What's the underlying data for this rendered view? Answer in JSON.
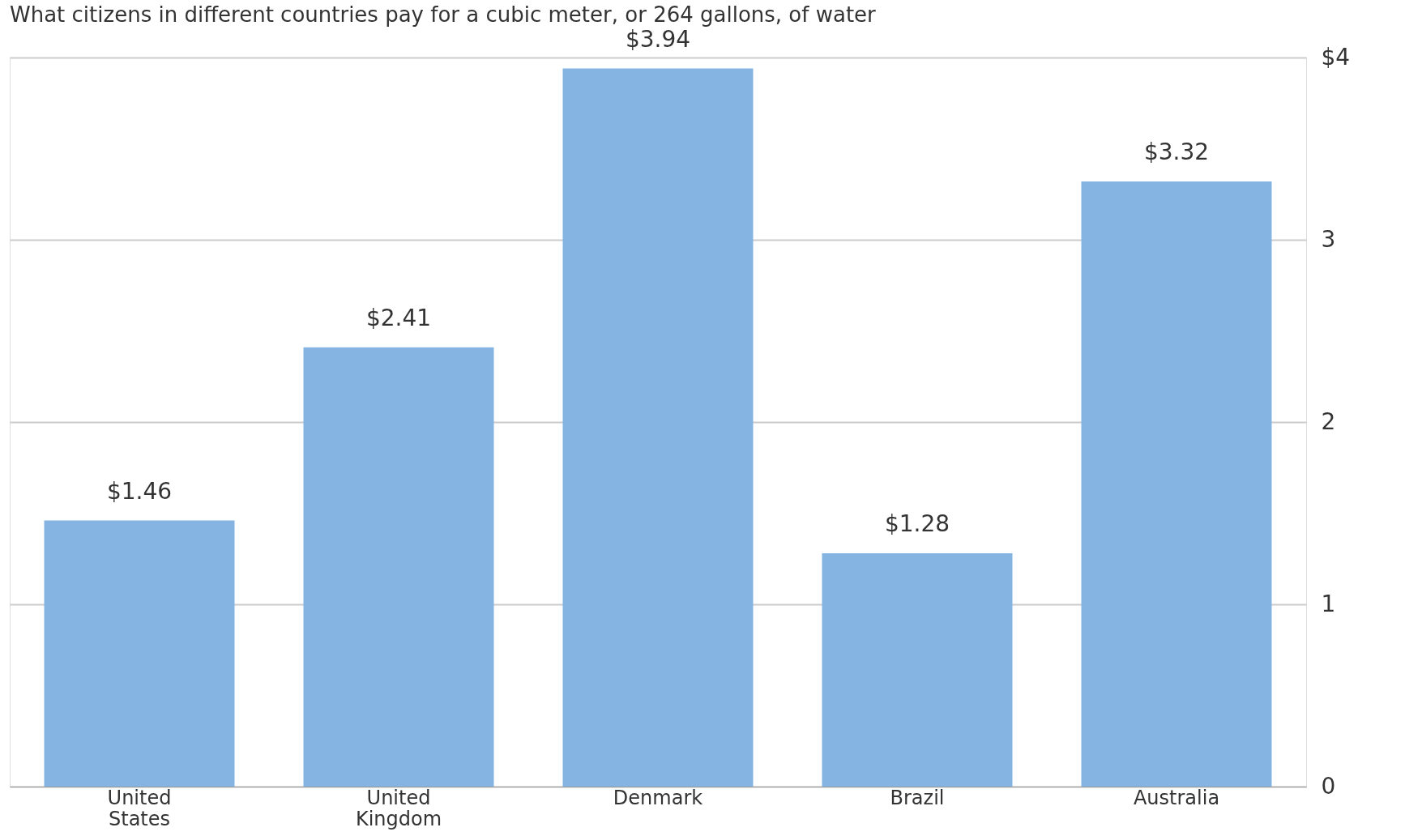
{
  "chart_data": {
    "type": "bar",
    "title": "What citizens in different countries pay for a cubic meter, or 264 gallons, of water",
    "categories": [
      [
        "United",
        "States"
      ],
      [
        "United",
        "Kingdom"
      ],
      "Denmark",
      "Brazil",
      "Australia"
    ],
    "values": [
      1.46,
      2.41,
      3.94,
      1.28,
      3.32
    ],
    "value_labels": [
      "$1.46",
      "$2.41",
      "$3.94",
      "$1.28",
      "$3.32"
    ],
    "color": "#85b4e3",
    "ylim": [
      0,
      4
    ],
    "yticks": [
      0,
      1,
      2,
      3,
      {
        "value": 4,
        "label": "$4"
      }
    ],
    "grid": "y"
  }
}
